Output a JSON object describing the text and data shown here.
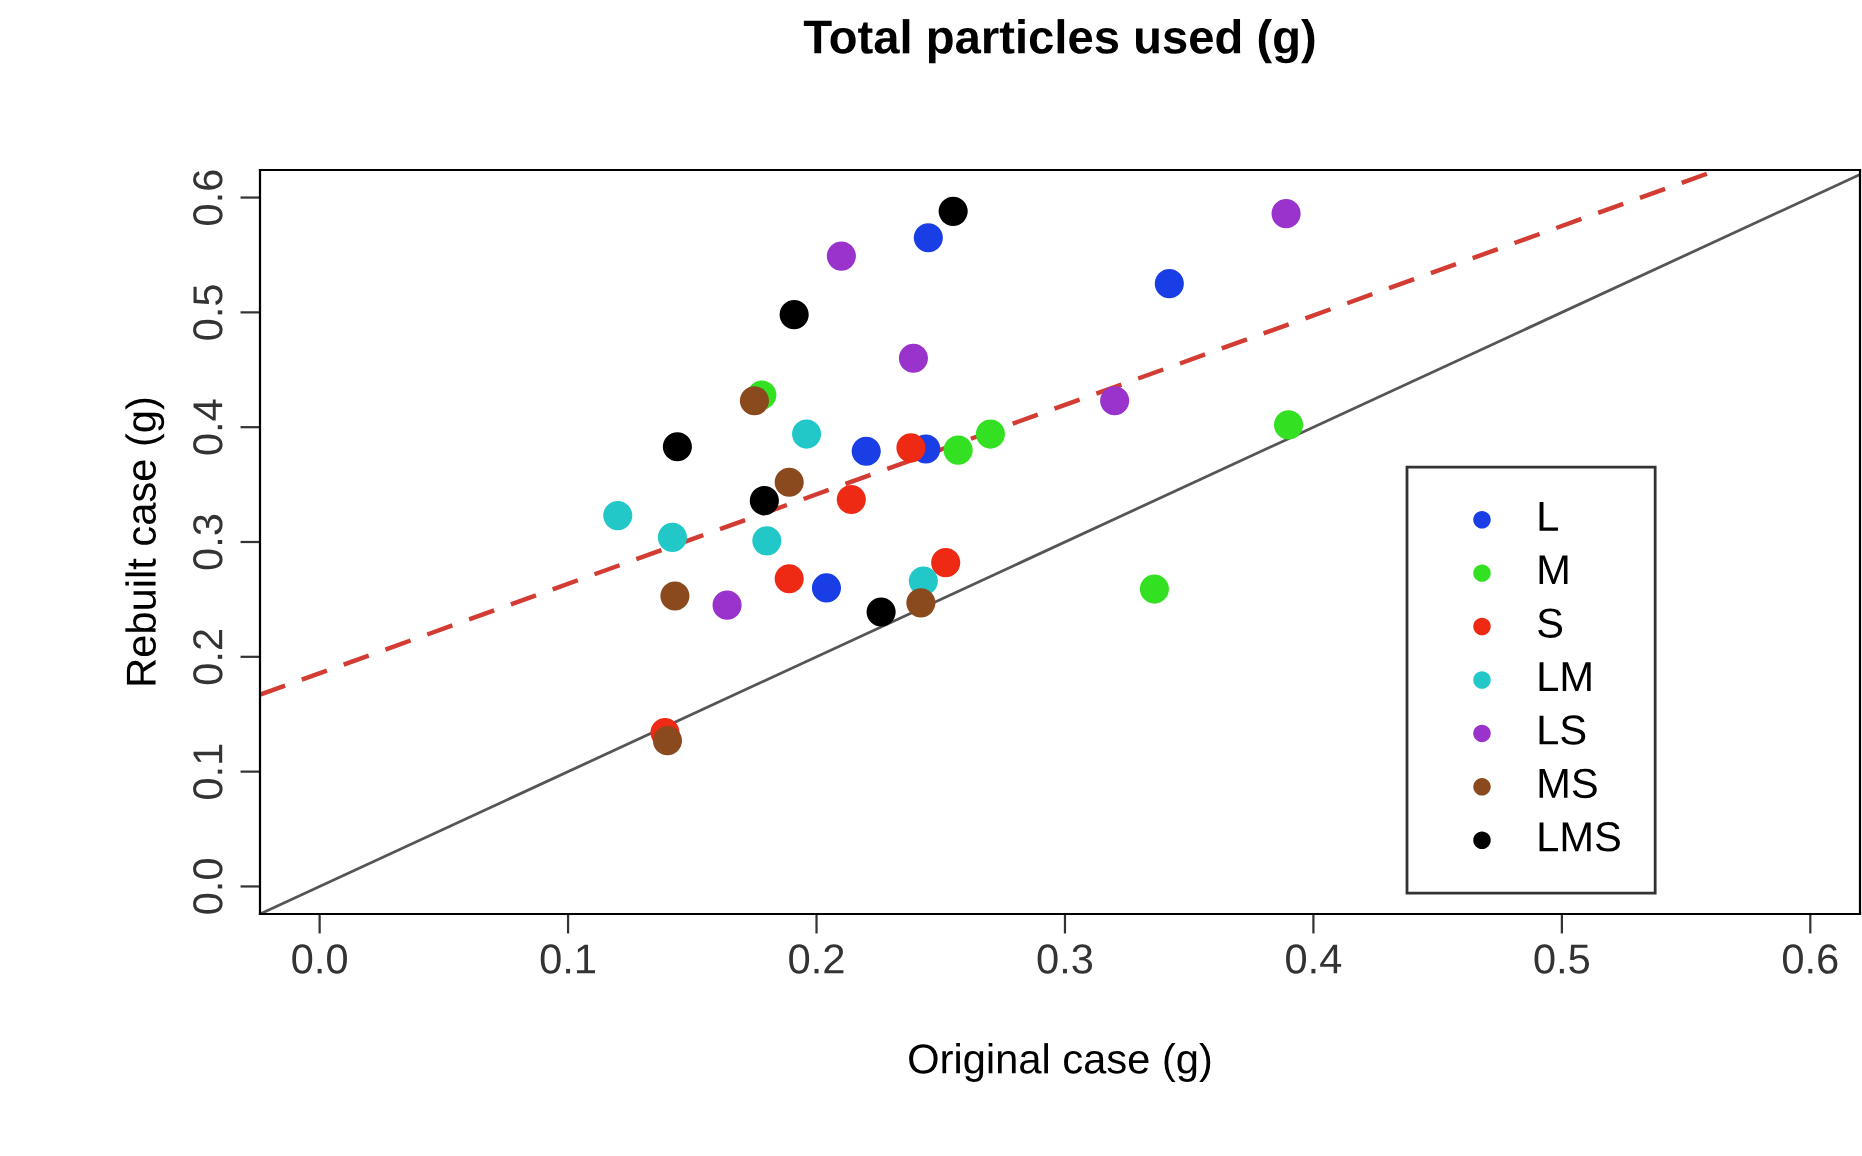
{
  "chart_data": {
    "type": "scatter",
    "title": "Total particles used (g)",
    "xlabel": "Original case (g)",
    "ylabel": "Rebuilt case (g)",
    "xlim": [
      -0.024,
      0.62
    ],
    "ylim": [
      -0.024,
      0.624
    ],
    "xticks": [
      {
        "value": 0,
        "label": "0.0"
      },
      0.1,
      0.2,
      0.3,
      0.4,
      0.5,
      0.6
    ],
    "yticks": [
      {
        "value": 0,
        "label": "0.0"
      },
      0.1,
      0.2,
      0.3,
      0.4,
      0.5,
      0.6
    ],
    "grid": false,
    "legend": "bottom right",
    "marker": "circle",
    "series": [
      {
        "name": "L",
        "color": "#1a3ee6",
        "x": [
          0.245,
          0.22,
          0.244,
          0.204,
          0.342
        ],
        "values": [
          0.565,
          0.379,
          0.381,
          0.26,
          0.525
        ]
      },
      {
        "name": "M",
        "color": "#33e022",
        "x": [
          0.178,
          0.257,
          0.27,
          0.39,
          0.336
        ],
        "values": [
          0.428,
          0.38,
          0.394,
          0.402,
          0.259
        ]
      },
      {
        "name": "S",
        "color": "#ee2a14",
        "x": [
          0.238,
          0.214,
          0.252,
          0.189,
          0.139
        ],
        "values": [
          0.382,
          0.337,
          0.282,
          0.268,
          0.134
        ]
      },
      {
        "name": "LM",
        "color": "#22c8c8",
        "x": [
          0.196,
          0.12,
          0.142,
          0.18,
          0.243
        ],
        "values": [
          0.394,
          0.323,
          0.304,
          0.301,
          0.266
        ]
      },
      {
        "name": "LS",
        "color": "#9933cc",
        "x": [
          0.21,
          0.239,
          0.164,
          0.389,
          0.32
        ],
        "values": [
          0.549,
          0.46,
          0.245,
          0.586,
          0.423
        ]
      },
      {
        "name": "MS",
        "color": "#8b4a1e",
        "x": [
          0.175,
          0.189,
          0.143,
          0.242,
          0.14
        ],
        "values": [
          0.423,
          0.352,
          0.253,
          0.247,
          0.127
        ]
      },
      {
        "name": "LMS",
        "color": "#000000",
        "x": [
          0.255,
          0.191,
          0.144,
          0.179,
          0.226
        ],
        "values": [
          0.588,
          0.498,
          0.383,
          0.336,
          0.239
        ]
      },
      {
        "type": "line",
        "color": "#555555",
        "line_style": "solid",
        "marker": "none",
        "x": [
          -0.024,
          0.62
        ],
        "values": [
          -0.024,
          0.62
        ]
      },
      {
        "type": "line",
        "color": "#d23c32",
        "line_style": "dashed",
        "marker": "none",
        "x": [
          -0.024,
          0.56
        ],
        "values": [
          0.167,
          0.622
        ]
      }
    ]
  }
}
